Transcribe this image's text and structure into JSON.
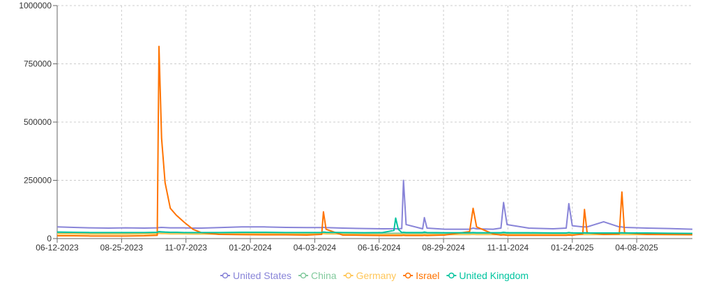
{
  "chart_data": {
    "type": "line",
    "x": [
      "06-12-2023",
      "07-01-2023",
      "07-20-2023",
      "08-10-2023",
      "08-30-2023",
      "09-20-2023",
      "10-05-2023",
      "10-07-2023",
      "10-10-2023",
      "10-14-2023",
      "10-20-2023",
      "10-27-2023",
      "11-05-2023",
      "11-15-2023",
      "11-25-2023",
      "12-15-2023",
      "01-10-2024",
      "02-05-2024",
      "03-01-2024",
      "03-25-2024",
      "04-11-2024",
      "04-13-2024",
      "04-16-2024",
      "05-05-2024",
      "05-30-2024",
      "06-20-2024",
      "07-03-2024",
      "07-05-2024",
      "07-08-2024",
      "07-12-2024",
      "07-14-2024",
      "07-17-2024",
      "08-05-2024",
      "08-07-2024",
      "08-10-2024",
      "08-30-2024",
      "09-28-2024",
      "10-02-2024",
      "10-06-2024",
      "10-25-2024",
      "11-03-2024",
      "11-06-2024",
      "11-10-2024",
      "12-05-2024",
      "01-02-2025",
      "01-17-2025",
      "01-20-2025",
      "01-24-2025",
      "02-05-2025",
      "02-07-2025",
      "02-10-2025",
      "03-01-2025",
      "03-19-2025",
      "03-22-2025",
      "03-25-2025",
      "04-20-2025",
      "05-15-2025",
      "06-11-2025"
    ],
    "series": [
      {
        "name": "United States",
        "color": "#8884d8",
        "values": [
          50000,
          48000,
          46000,
          45000,
          46000,
          45000,
          46000,
          47000,
          48000,
          47000,
          46000,
          46000,
          46000,
          45000,
          45000,
          47000,
          50000,
          50000,
          48000,
          47000,
          47000,
          48000,
          47000,
          45000,
          43000,
          42000,
          42000,
          42000,
          42000,
          43000,
          250000,
          60000,
          42000,
          90000,
          45000,
          40000,
          40000,
          45000,
          42000,
          40000,
          45000,
          155000,
          60000,
          45000,
          42000,
          45000,
          150000,
          55000,
          50000,
          50000,
          50000,
          72000,
          50000,
          50000,
          48000,
          45000,
          43000,
          40000
        ]
      },
      {
        "name": "China",
        "color": "#82ca9d",
        "values": [
          25000,
          25000,
          24000,
          24000,
          24000,
          24000,
          25000,
          25000,
          25000,
          25000,
          25000,
          24000,
          24000,
          24000,
          24000,
          24000,
          25000,
          25000,
          25000,
          24000,
          24000,
          25000,
          24000,
          24000,
          23000,
          23000,
          23000,
          23000,
          23000,
          23000,
          23000,
          23000,
          23000,
          23000,
          23000,
          22000,
          22000,
          23000,
          22000,
          22000,
          22000,
          24000,
          22000,
          22000,
          22000,
          22000,
          23000,
          22000,
          22000,
          22000,
          22000,
          22000,
          22000,
          22000,
          22000,
          22000,
          22000,
          21000
        ]
      },
      {
        "name": "Germany",
        "color": "#ffc658",
        "values": [
          20000,
          20000,
          19000,
          19000,
          19000,
          20000,
          20000,
          22000,
          21000,
          21000,
          20000,
          20000,
          20000,
          19000,
          19000,
          19000,
          20000,
          20000,
          20000,
          19000,
          20000,
          21000,
          20000,
          19000,
          18000,
          17000,
          17000,
          17000,
          17000,
          17000,
          18000,
          17000,
          17000,
          17000,
          17000,
          17000,
          17000,
          18000,
          17000,
          17000,
          17000,
          18000,
          17000,
          17000,
          17000,
          17000,
          18000,
          17000,
          17000,
          17000,
          17000,
          17000,
          17000,
          17000,
          17000,
          17000,
          16000,
          16000
        ]
      },
      {
        "name": "Israel",
        "color": "#ff7300",
        "values": [
          12000,
          12000,
          11000,
          11000,
          11000,
          12000,
          14000,
          825000,
          430000,
          240000,
          130000,
          100000,
          70000,
          40000,
          25000,
          18000,
          17000,
          16000,
          16000,
          15000,
          18000,
          115000,
          40000,
          15000,
          14000,
          13000,
          13000,
          13000,
          13000,
          13000,
          14000,
          13000,
          13000,
          14000,
          13000,
          15000,
          30000,
          130000,
          50000,
          20000,
          15000,
          16000,
          14000,
          14000,
          14000,
          14000,
          15000,
          14000,
          20000,
          125000,
          25000,
          18000,
          20000,
          200000,
          25000,
          18000,
          18000,
          17000
        ]
      },
      {
        "name": "United Kingdom",
        "color": "#00c49f",
        "values": [
          28000,
          27000,
          26000,
          26000,
          26000,
          26000,
          27000,
          30000,
          29000,
          28000,
          27000,
          27000,
          26000,
          26000,
          26000,
          26000,
          27000,
          27000,
          26000,
          26000,
          26000,
          28000,
          27000,
          26000,
          25000,
          26000,
          35000,
          88000,
          40000,
          26000,
          27000,
          26000,
          26000,
          28000,
          26000,
          25000,
          25000,
          26000,
          25000,
          25000,
          25000,
          27000,
          25000,
          25000,
          24000,
          24000,
          26000,
          24000,
          24000,
          25000,
          24000,
          24000,
          24000,
          25000,
          24000,
          24000,
          23000,
          22000
        ]
      }
    ],
    "xlim": [
      "06-12-2023",
      "06-11-2025"
    ],
    "xticks": [
      "06-12-2023",
      "08-25-2023",
      "11-07-2023",
      "01-20-2024",
      "04-03-2024",
      "06-16-2024",
      "08-29-2024",
      "11-11-2024",
      "01-24-2025",
      "04-08-2025"
    ],
    "ylim": [
      0,
      1000000
    ],
    "yticks": [
      0,
      250000,
      500000,
      750000,
      1000000
    ],
    "grid": true
  }
}
